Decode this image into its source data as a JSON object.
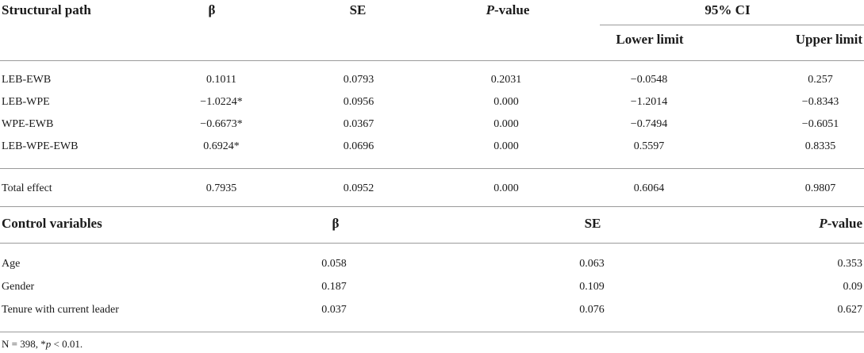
{
  "structural": {
    "headers": {
      "path": "Structural path",
      "beta": "β",
      "se": "SE",
      "p_italic": "P",
      "p_rest": "-value",
      "ci": "95% CI",
      "lower": "Lower limit",
      "upper": "Upper limit"
    },
    "rows": [
      {
        "path": "LEB-EWB",
        "beta": "0.1011",
        "se": "0.0793",
        "p": "0.2031",
        "lower": "−0.0548",
        "upper": "0.257"
      },
      {
        "path": "LEB-WPE",
        "beta": "−1.0224*",
        "se": "0.0956",
        "p": "0.000",
        "lower": "−1.2014",
        "upper": "−0.8343"
      },
      {
        "path": "WPE-EWB",
        "beta": "−0.6673*",
        "se": "0.0367",
        "p": "0.000",
        "lower": "−0.7494",
        "upper": "−0.6051"
      },
      {
        "path": "LEB-WPE-EWB",
        "beta": "0.6924*",
        "se": "0.0696",
        "p": "0.000",
        "lower": "0.5597",
        "upper": "0.8335"
      }
    ],
    "total": {
      "path": "Total effect",
      "beta": "0.7935",
      "se": "0.0952",
      "p": "0.000",
      "lower": "0.6064",
      "upper": "0.9807"
    }
  },
  "control": {
    "headers": {
      "label": "Control variables",
      "beta": "β",
      "se": "SE",
      "p_italic": "P",
      "p_rest": "-value"
    },
    "rows": [
      {
        "name": "Age",
        "beta": "0.058",
        "se": "0.063",
        "p": "0.353"
      },
      {
        "name": "Gender",
        "beta": "0.187",
        "se": "0.109",
        "p": "0.09"
      },
      {
        "name": "Tenure with current leader",
        "beta": "0.037",
        "se": "0.076",
        "p": "0.627"
      }
    ]
  },
  "footnote": {
    "n_part": "N = 398, *",
    "p_italic": "p",
    "rest": " < 0.01."
  }
}
